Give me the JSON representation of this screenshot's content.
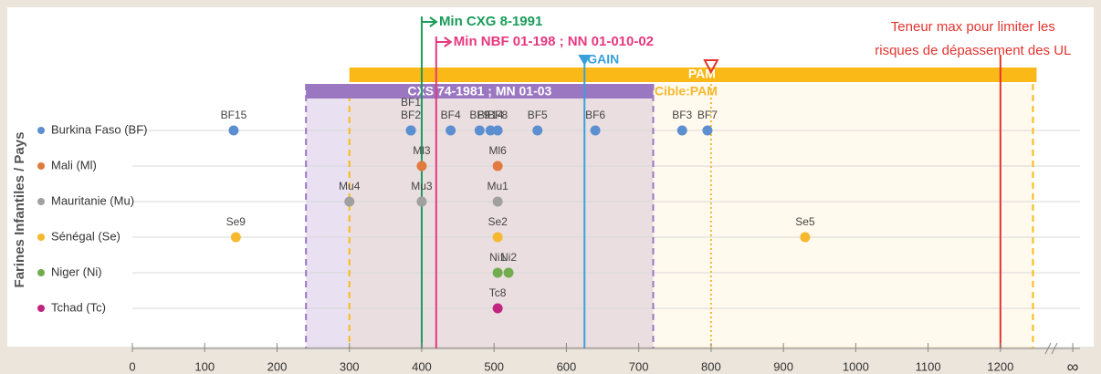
{
  "chart_data": {
    "type": "strip",
    "y_label": "Farines Infantiles / Pays",
    "categories": [
      "Burkina Faso (BF)",
      "Mali (Ml)",
      "Mauritanie (Mu)",
      "Sénégal (Se)",
      "Niger (Ni)",
      "Tchad (Tc)"
    ],
    "series": [
      {
        "name": "Burkina Faso (BF)",
        "color": "#5b8fd0",
        "labels": [
          "BF15",
          "BF1",
          "BF2",
          "BF4",
          "BF9",
          "BF14",
          "BF8",
          "BF5",
          "BF6",
          "BF3",
          "BF7"
        ],
        "values": [
          140,
          385,
          385,
          440,
          480,
          495,
          505,
          560,
          640,
          760,
          795
        ]
      },
      {
        "name": "Mali (Ml)",
        "color": "#e07a3e",
        "labels": [
          "Ml3",
          "Ml6"
        ],
        "values": [
          400,
          505
        ]
      },
      {
        "name": "Mauritanie (Mu)",
        "color": "#a0a0a0",
        "labels": [
          "Mu4",
          "Mu3",
          "Mu1"
        ],
        "values": [
          300,
          400,
          505
        ]
      },
      {
        "name": "Sénégal (Se)",
        "color": "#f5b82e",
        "labels": [
          "Se9",
          "Se2",
          "Se5"
        ],
        "values": [
          143,
          505,
          930
        ]
      },
      {
        "name": "Niger (Ni)",
        "color": "#72ac4d",
        "labels": [
          "Ni1",
          "Ni2"
        ],
        "values": [
          505,
          520
        ]
      },
      {
        "name": "Tchad (Tc)",
        "color": "#c0267f",
        "labels": [
          "Tc8"
        ],
        "values": [
          505
        ]
      }
    ],
    "bands": [
      {
        "label": "CXS 74-1981 ; MN 01-03",
        "from": 240,
        "to": 720,
        "color": "#9b77c2"
      },
      {
        "label": "PAM",
        "from": 300,
        "to": 1250,
        "color": "#fbb917",
        "end_line": 1245
      }
    ],
    "target": {
      "label": "Cible:PAM",
      "value": 800,
      "color": "#f5b82e"
    },
    "references": [
      {
        "label": "Min CXG 8-1991",
        "value": 400,
        "color": "#1a9c5a"
      },
      {
        "label": "Min NBF 01-198 ; NN 01-010-02",
        "value": 420,
        "color": "#e6397f"
      },
      {
        "label": "GAIN",
        "value": 625,
        "color": "#3aa0dc"
      },
      {
        "label": [
          "Teneur max pour limiter les",
          "risques de dépassement des UL"
        ],
        "value": 1200,
        "color": "#e3342f"
      }
    ],
    "xlim": [
      0,
      1310
    ],
    "xticks": [
      0,
      100,
      200,
      300,
      400,
      500,
      600,
      700,
      800,
      900,
      1000,
      1100,
      1200,
      {
        "value": 1300,
        "label": "∞"
      }
    ]
  }
}
